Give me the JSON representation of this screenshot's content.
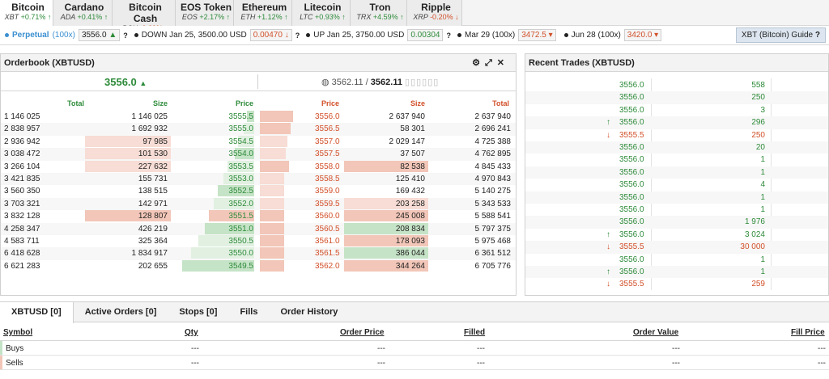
{
  "tabs": [
    {
      "name": "Bitcoin",
      "symbol": "XBT",
      "change": "+0.71%",
      "dir": "up",
      "active": true
    },
    {
      "name": "Cardano",
      "symbol": "ADA",
      "change": "+0.41%",
      "dir": "up",
      "active": false
    },
    {
      "name": "Bitcoin Cash",
      "symbol": "BCH",
      "change": "-0.29%",
      "dir": "down",
      "active": false
    },
    {
      "name": "EOS Token",
      "symbol": "EOS",
      "change": "+2.17%",
      "dir": "up",
      "active": false
    },
    {
      "name": "Ethereum",
      "symbol": "ETH",
      "change": "+1.12%",
      "dir": "up",
      "active": false
    },
    {
      "name": "Litecoin",
      "symbol": "LTC",
      "change": "+0.93%",
      "dir": "up",
      "active": false
    },
    {
      "name": "Tron",
      "symbol": "TRX",
      "change": "+4.59%",
      "dir": "up",
      "active": false
    },
    {
      "name": "Ripple",
      "symbol": "XRP",
      "change": "-0.20%",
      "dir": "down",
      "active": false
    }
  ],
  "contracts": {
    "perpetual": {
      "label": "Perpetual",
      "multiplier": "(100x)",
      "price": "3556.0"
    },
    "down": {
      "label": "DOWN Jan 25, 3500.00 USD",
      "price": "0.00470"
    },
    "up": {
      "label": "UP Jan 25, 3750.00 USD",
      "price": "0.00304"
    },
    "mar": {
      "label": "Mar 29 (100x)",
      "price": "3472.5"
    },
    "jun": {
      "label": "Jun 28 (100x)",
      "price": "3420.0"
    },
    "guide": "XBT (Bitcoin) Guide"
  },
  "orderbook": {
    "title": "Orderbook (XBTUSD)",
    "last_price": "3556.0",
    "index_price": "3562.11",
    "mark_price": "3562.11",
    "col_total": "Total",
    "col_size": "Size",
    "col_price": "Price",
    "bids": [
      {
        "total": "1 146 025",
        "size": "1 146 025",
        "price": "3555.5",
        "level": 0.08
      },
      {
        "total": "2 838 957",
        "size": "1 692 932",
        "price": "3555.0",
        "level": 0.12
      },
      {
        "total": "2 936 942",
        "size": "97 985",
        "price": "3554.5",
        "level": 0.18
      },
      {
        "total": "3 038 472",
        "size": "101 530",
        "level": 0.22,
        "price": "3554.0"
      },
      {
        "total": "3 266 104",
        "size": "227 632",
        "price": "3553.5",
        "level": 0.3
      },
      {
        "total": "3 421 835",
        "size": "155 731",
        "price": "3553.0",
        "level": 0.34
      },
      {
        "total": "3 560 350",
        "size": "138 515",
        "price": "3552.5",
        "level": 0.4
      },
      {
        "total": "3 703 321",
        "size": "142 971",
        "price": "3552.0",
        "level": 0.45
      },
      {
        "total": "3 832 128",
        "size": "128 807",
        "price": "3551.5",
        "level": 0.5
      },
      {
        "total": "4 258 347",
        "size": "426 219",
        "price": "3551.0",
        "level": 0.55
      },
      {
        "total": "4 583 711",
        "size": "325 364",
        "price": "3550.5",
        "level": 0.62
      },
      {
        "total": "6 418 628",
        "size": "1 834 917",
        "price": "3550.0",
        "level": 0.7
      },
      {
        "total": "6 621 283",
        "size": "202 655",
        "price": "3549.5",
        "level": 0.8
      }
    ],
    "asks": [
      {
        "price": "3556.0",
        "size": "2 637 940",
        "total": "2 637 940",
        "level": 0.32
      },
      {
        "price": "3556.5",
        "size": "58 301",
        "total": "2 696 241",
        "level": 0.3
      },
      {
        "price": "3557.0",
        "size": "2 029 147",
        "total": "4 725 388",
        "level": 0.27
      },
      {
        "price": "3557.5",
        "size": "37 507",
        "total": "4 762 895",
        "level": 0.25
      },
      {
        "price": "3558.0",
        "size": "82 538",
        "total": "4 845 433",
        "level": 0.28
      },
      {
        "price": "3558.5",
        "size": "125 410",
        "total": "4 970 843",
        "level": 0.22
      },
      {
        "price": "3559.0",
        "size": "169 432",
        "total": "5 140 275",
        "level": 0.2
      },
      {
        "price": "3559.5",
        "size": "203 258",
        "total": "5 343 533",
        "level": 0.18
      },
      {
        "price": "3560.0",
        "size": "245 008",
        "total": "5 588 541",
        "level": 0.16
      },
      {
        "price": "3560.5",
        "size": "208 834",
        "total": "5 797 375",
        "level": 0.14
      },
      {
        "price": "3561.0",
        "size": "178 093",
        "total": "5 975 468",
        "level": 0.12
      },
      {
        "price": "3561.5",
        "size": "386 044",
        "total": "6 361 512",
        "level": 0.1
      },
      {
        "price": "3562.0",
        "size": "344 264",
        "total": "6 705 776",
        "level": 0.08
      }
    ]
  },
  "trades": {
    "title": "Recent Trades (XBTUSD)",
    "rows": [
      {
        "dir": "",
        "price": "3556.0",
        "size": "558",
        "color": "green"
      },
      {
        "dir": "",
        "price": "3556.0",
        "size": "250",
        "color": "green"
      },
      {
        "dir": "",
        "price": "3556.0",
        "size": "3",
        "color": "green"
      },
      {
        "dir": "up",
        "price": "3556.0",
        "size": "296",
        "color": "green"
      },
      {
        "dir": "down",
        "price": "3555.5",
        "size": "250",
        "color": "red"
      },
      {
        "dir": "",
        "price": "3556.0",
        "size": "20",
        "color": "green"
      },
      {
        "dir": "",
        "price": "3556.0",
        "size": "1",
        "color": "green"
      },
      {
        "dir": "",
        "price": "3556.0",
        "size": "1",
        "color": "green"
      },
      {
        "dir": "",
        "price": "3556.0",
        "size": "4",
        "color": "green"
      },
      {
        "dir": "",
        "price": "3556.0",
        "size": "1",
        "color": "green"
      },
      {
        "dir": "",
        "price": "3556.0",
        "size": "1",
        "color": "green"
      },
      {
        "dir": "",
        "price": "3556.0",
        "size": "1 976",
        "color": "green"
      },
      {
        "dir": "up",
        "price": "3556.0",
        "size": "3 024",
        "color": "green"
      },
      {
        "dir": "down",
        "price": "3555.5",
        "size": "30 000",
        "color": "red"
      },
      {
        "dir": "",
        "price": "3556.0",
        "size": "1",
        "color": "green"
      },
      {
        "dir": "up",
        "price": "3556.0",
        "size": "1",
        "color": "green"
      },
      {
        "dir": "down",
        "price": "3555.5",
        "size": "259",
        "color": "red"
      }
    ]
  },
  "bottom": {
    "tabs": [
      "XBTUSD [0]",
      "Active Orders [0]",
      "Stops [0]",
      "Fills",
      "Order History"
    ],
    "headers": {
      "symbol": "Symbol",
      "qty": "Qty",
      "order_price": "Order Price",
      "filled": "Filled",
      "order_value": "Order Value",
      "fill_price": "Fill Price"
    },
    "rows": [
      {
        "label": "Buys",
        "qty": "---",
        "order_price": "---",
        "filled": "---",
        "order_value": "---",
        "fill_price": "---"
      },
      {
        "label": "Sells",
        "qty": "---",
        "order_price": "---",
        "filled": "---",
        "order_value": "---",
        "fill_price": "---"
      }
    ]
  },
  "colors": {
    "up": "#2e8b3a",
    "down": "#d2502a",
    "accent": "#3a8fd0"
  }
}
